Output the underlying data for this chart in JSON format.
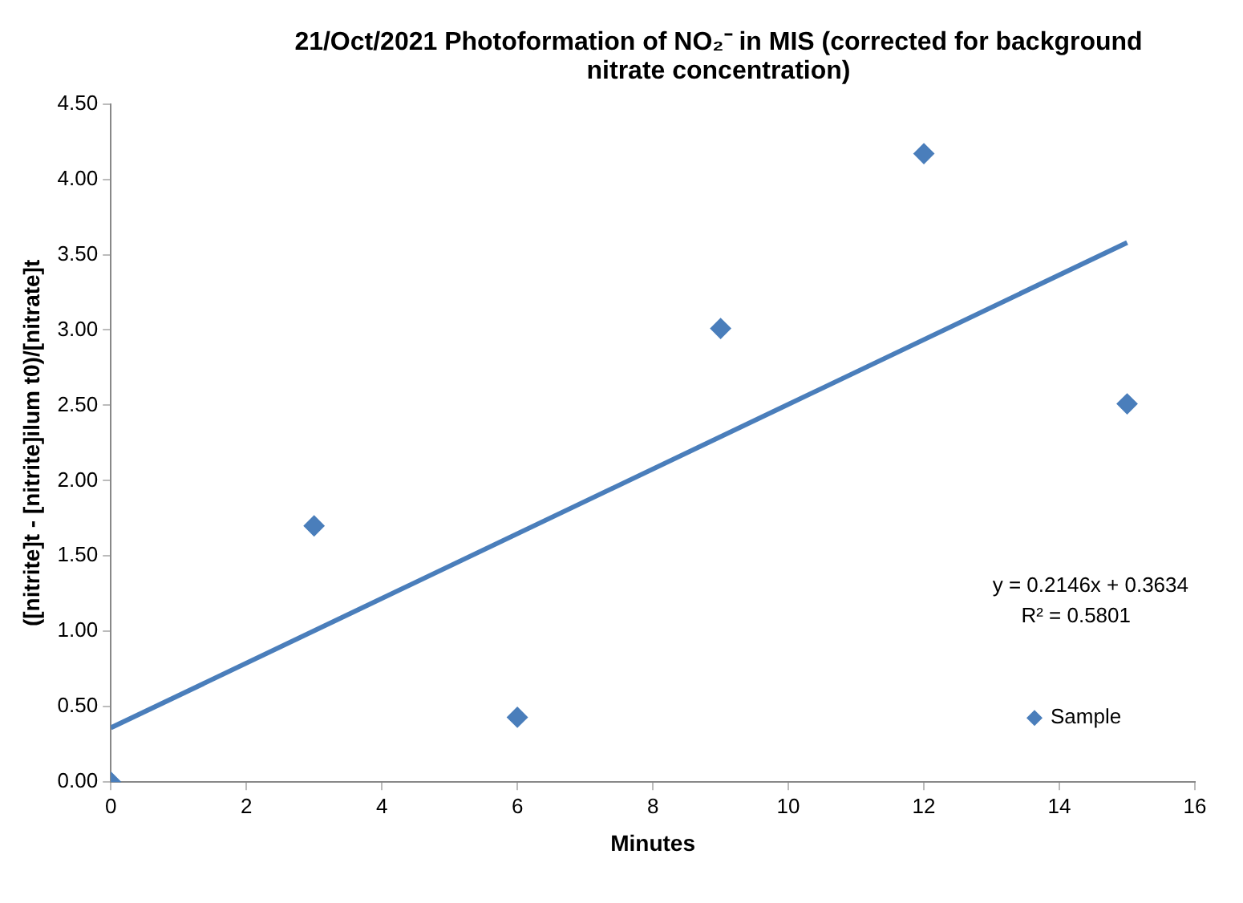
{
  "chart_data": {
    "type": "scatter",
    "title": "21/Oct/2021 Photoformation of NO₂⁻ in MIS (corrected for background nitrate concentration)",
    "xlabel": "Minutes",
    "ylabel": "([nitrite]t - [nitrite]ilum t0)/[nitrate]t",
    "xlim": [
      0,
      16
    ],
    "xticks": [
      0,
      2,
      4,
      6,
      8,
      10,
      12,
      14,
      16
    ],
    "ylim": [
      0,
      4.5
    ],
    "yticks": [
      {
        "value": 0,
        "label": "0.00"
      },
      {
        "value": 0.5,
        "label": "0.50"
      },
      {
        "value": 1,
        "label": "1.00"
      },
      {
        "value": 1.5,
        "label": "1.50"
      },
      {
        "value": 2,
        "label": "2.00"
      },
      {
        "value": 2.5,
        "label": "2.50"
      },
      {
        "value": 3,
        "label": "3.00"
      },
      {
        "value": 3.5,
        "label": "3.50"
      },
      {
        "value": 4,
        "label": "4.00"
      },
      {
        "value": 4.5,
        "label": "4.50"
      }
    ],
    "grid": false,
    "legend": "bottom right",
    "annotations": [
      "y = 0.2146x + 0.3634",
      "R² = 0.5801"
    ],
    "series": [
      {
        "name": "Sample",
        "type": "scatter",
        "color": "#4a7ebb",
        "marker": "diamond",
        "x": [
          0,
          3,
          6,
          9,
          12,
          15
        ],
        "values": [
          0,
          1.7,
          0.43,
          3.01,
          4.17,
          2.51
        ]
      },
      {
        "type": "line",
        "color": "#4a7ebb",
        "marker": "none",
        "x": [
          0,
          15
        ],
        "values": [
          0.36,
          3.58
        ]
      }
    ]
  }
}
